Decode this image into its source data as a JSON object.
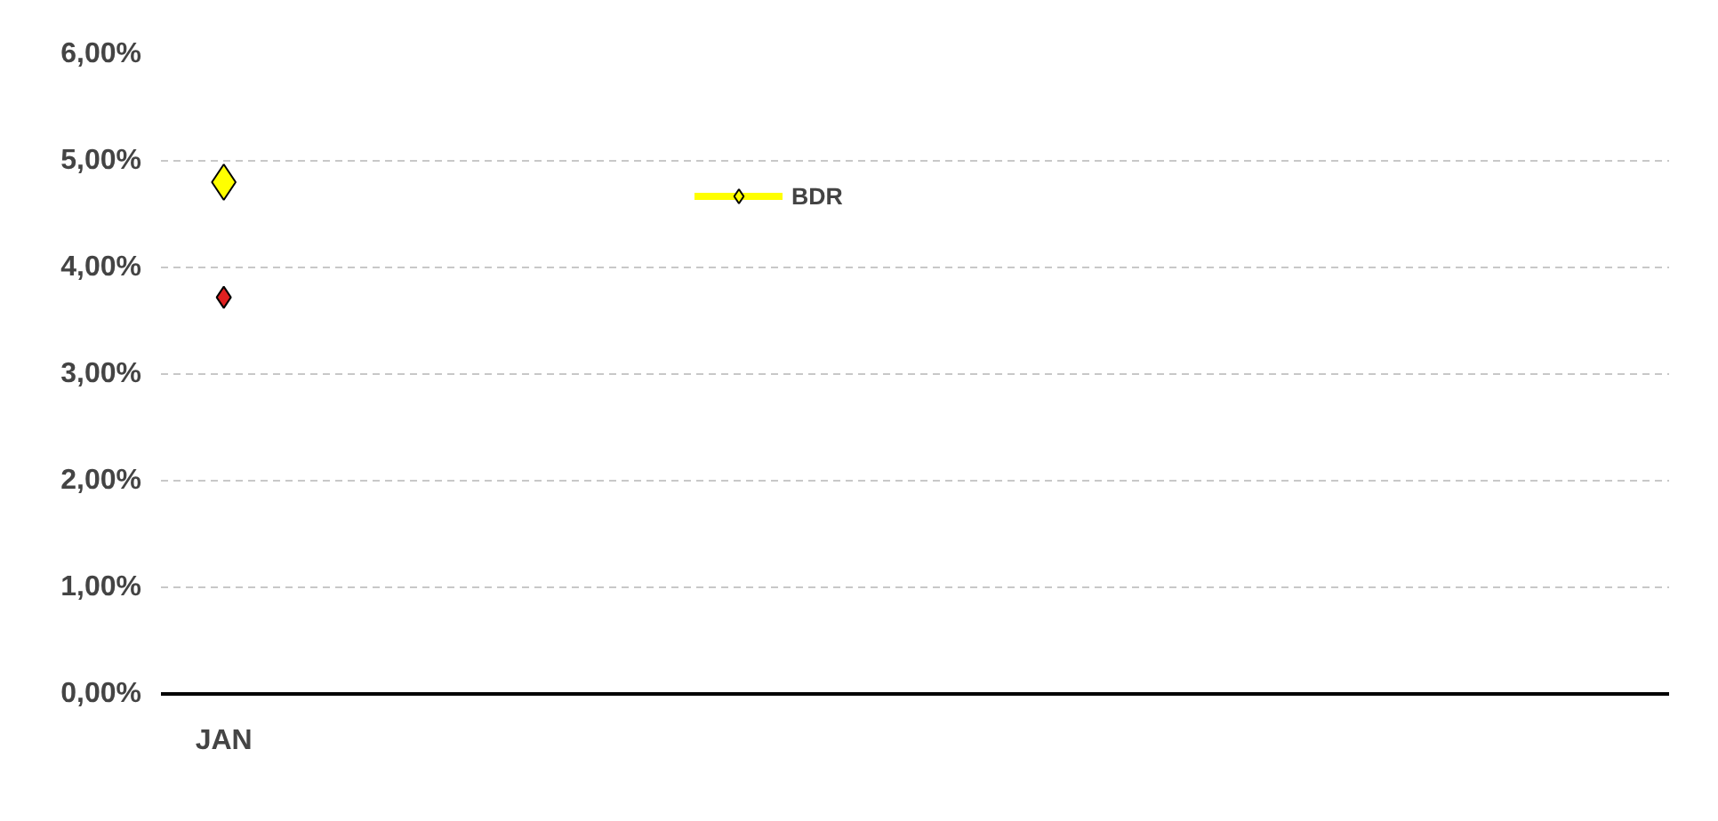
{
  "chart_data": {
    "type": "line",
    "marker": "diamond",
    "grid": "y",
    "legend": "top",
    "categories": [
      "JAN",
      null,
      null,
      null,
      null,
      null,
      null,
      null,
      null,
      null,
      null,
      null
    ],
    "series": [
      {
        "color": "#e02020",
        "values": [
          3.72,
          null,
          null,
          null,
          null,
          null,
          null,
          null,
          null,
          null,
          null,
          null
        ]
      },
      {
        "name": "BDR",
        "color": "#ffff00",
        "values": [
          4.8,
          null,
          null,
          null,
          null,
          null,
          null,
          null,
          null,
          null,
          null,
          null
        ]
      }
    ],
    "ylim": [
      0,
      6
    ],
    "yticks": [
      {
        "value": 0,
        "label": "0,00%"
      },
      {
        "value": 1,
        "label": "1,00%"
      },
      {
        "value": 2,
        "label": "2,00%"
      },
      {
        "value": 3,
        "label": "3,00%"
      },
      {
        "value": 4,
        "label": "4,00%"
      },
      {
        "value": 5,
        "label": "5,00%"
      },
      {
        "value": 6,
        "label": "6,00%"
      }
    ]
  }
}
